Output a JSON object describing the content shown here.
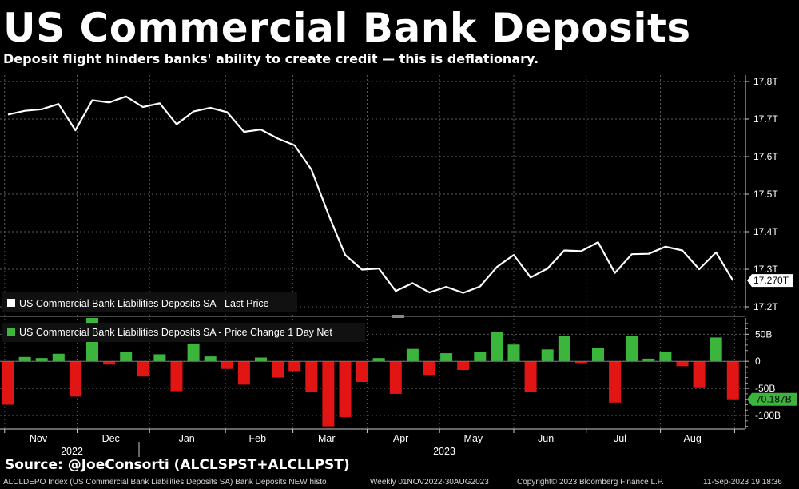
{
  "header": {
    "title": "US Commercial Bank Deposits",
    "subtitle": "Deposit flight hinders banks' ability to create credit — this is deflationary."
  },
  "source": "Source: @JoeConsorti (ALCLSPST+ALCLLPST)",
  "footer": {
    "index_text": "ALCLDEPO Index (US Commercial Bank Liabilities Deposits SA) Bank Deposits NEW histo",
    "range_text": "Weekly 01NOV2022-30AUG2023",
    "copyright": "Copyright© 2023 Bloomberg Finance L.P.",
    "timestamp": "11-Sep-2023 19:18:36"
  },
  "colors": {
    "background": "#000000",
    "line": "#ffffff",
    "bar_positive": "#3cb53c",
    "bar_negative": "#e21515",
    "grid": "#5a5a5a"
  },
  "chart_data": [
    {
      "type": "line",
      "legend": "US Commercial Bank Liabilities Deposits SA - Last Price",
      "unit": "T",
      "ylim": [
        17.2,
        17.8
      ],
      "yticks": [
        "17.8T",
        "17.7T",
        "17.6T",
        "17.5T",
        "17.4T",
        "17.3T",
        "17.2T"
      ],
      "last_value_label": "17.270T",
      "grid": true,
      "legend_position": "bottom-left",
      "values": [
        17.712,
        17.722,
        17.726,
        17.74,
        17.67,
        17.75,
        17.744,
        17.76,
        17.732,
        17.742,
        17.686,
        17.72,
        17.73,
        17.718,
        17.666,
        17.672,
        17.648,
        17.63,
        17.565,
        17.447,
        17.338,
        17.299,
        17.302,
        17.242,
        17.263,
        17.238,
        17.253,
        17.237,
        17.254,
        17.306,
        17.338,
        17.278,
        17.302,
        17.35,
        17.348,
        17.372,
        17.29,
        17.34,
        17.341,
        17.36,
        17.35,
        17.3,
        17.345,
        17.27
      ]
    },
    {
      "type": "bar",
      "legend": "US Commercial Bank Liabilities Deposits SA - Price Change 1 Day Net",
      "unit": "B",
      "ylim": [
        -125,
        80
      ],
      "yticks": [
        "50B",
        "0",
        "-50B",
        "-100B"
      ],
      "last_value_label": "-70.187B",
      "grid": true,
      "legend_position": "top-left",
      "values": [
        -80,
        8,
        6,
        14,
        -65,
        80,
        -6,
        17,
        -28,
        13,
        -55,
        33,
        9,
        -14,
        -43,
        7,
        -30,
        -18,
        -57,
        -120,
        -103,
        -38,
        6,
        -60,
        23,
        -25,
        15,
        -16,
        17,
        54,
        31,
        -57,
        22,
        47,
        -3,
        25,
        -76,
        47,
        5,
        18,
        -9,
        -48,
        44,
        -70
      ]
    }
  ],
  "x_axis": {
    "month_labels": [
      "Nov",
      "Dec",
      "Jan",
      "Feb",
      "Mar",
      "Apr",
      "May",
      "Jun",
      "Jul",
      "Aug"
    ],
    "years": [
      "2022",
      "2023"
    ]
  }
}
